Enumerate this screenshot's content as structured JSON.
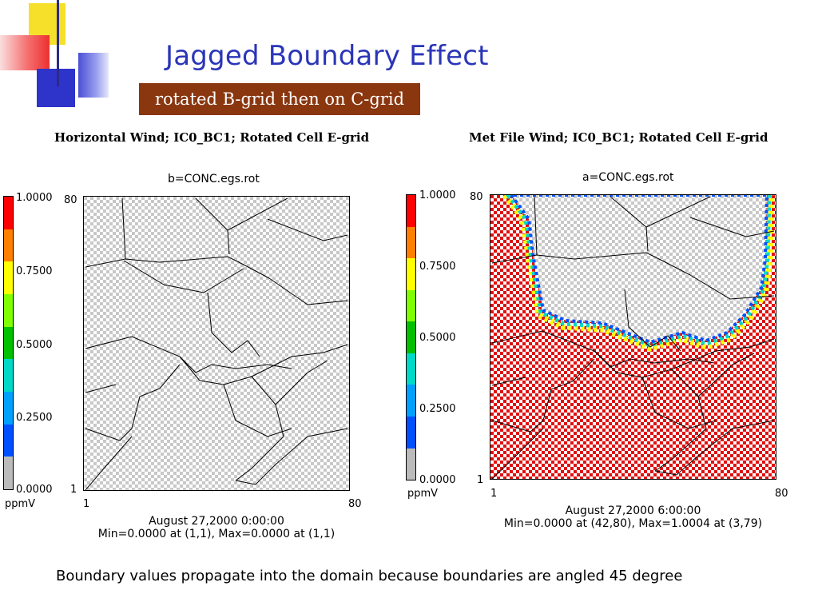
{
  "slide": {
    "title": "Jagged Boundary Effect",
    "subtitle": "rotated B-grid then on C-grid",
    "footer_note": "Boundary values propagate into the domain because boundaries are angled 45 degree"
  },
  "colors": {
    "title": "#2a35b8",
    "subtitle_bg": "#8a3710",
    "deco_yellow": "#f6e02a",
    "deco_blue": "#2e33c9",
    "deco_red": "#f24a4a",
    "checker_gray": "#c8c8c8",
    "checker_red": "#e01010"
  },
  "colorbar": {
    "unit": "ppmV",
    "labels": [
      "1.0000",
      "0.7500",
      "0.5000",
      "0.2500",
      "0.0000"
    ],
    "colors": [
      "#ff0000",
      "#ff8000",
      "#ffff00",
      "#80ff00",
      "#00c000",
      "#00d8c8",
      "#00a0ff",
      "#0050ff",
      "#bbbbbb"
    ]
  },
  "panels": {
    "left": {
      "heading": "Horizontal Wind; IC0_BC1; Rotated Cell E-grid",
      "file": "b=CONC.egs.rot",
      "y_top": "80",
      "y_bottom": "1",
      "x_left": "1",
      "x_right": "80",
      "caption_date": "August 27,2000 0:00:00",
      "caption_minmax": "Min=0.0000 at (1,1), Max=0.0000 at (1,1)"
    },
    "right": {
      "heading": "Met File Wind; IC0_BC1; Rotated Cell E-grid",
      "file": "a=CONC.egs.rot",
      "y_top": "80",
      "y_bottom": "1",
      "x_left": "1",
      "x_right": "80",
      "caption_date": "August 27,2000 6:00:00",
      "caption_minmax": "Min=0.0000 at (42,80), Max=1.0004 at (3,79)"
    }
  }
}
